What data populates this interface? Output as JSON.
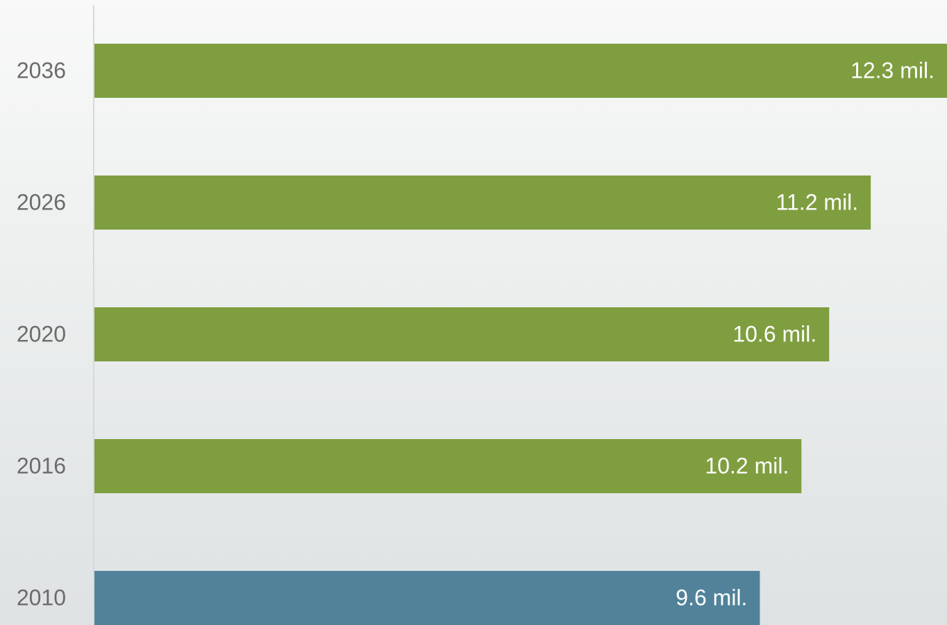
{
  "chart_data": {
    "type": "bar",
    "orientation": "horizontal",
    "categories": [
      "2036",
      "2026",
      "2020",
      "2016",
      "2010"
    ],
    "values": [
      12.3,
      11.2,
      10.6,
      10.2,
      9.6
    ],
    "value_labels": [
      "12.3 mil.",
      "11.2 mil.",
      "10.6 mil.",
      "10.2 mil.",
      "9.6 mil."
    ],
    "colors": [
      "#7f9e40",
      "#7f9e40",
      "#7f9e40",
      "#7f9e40",
      "#51829a"
    ]
  }
}
